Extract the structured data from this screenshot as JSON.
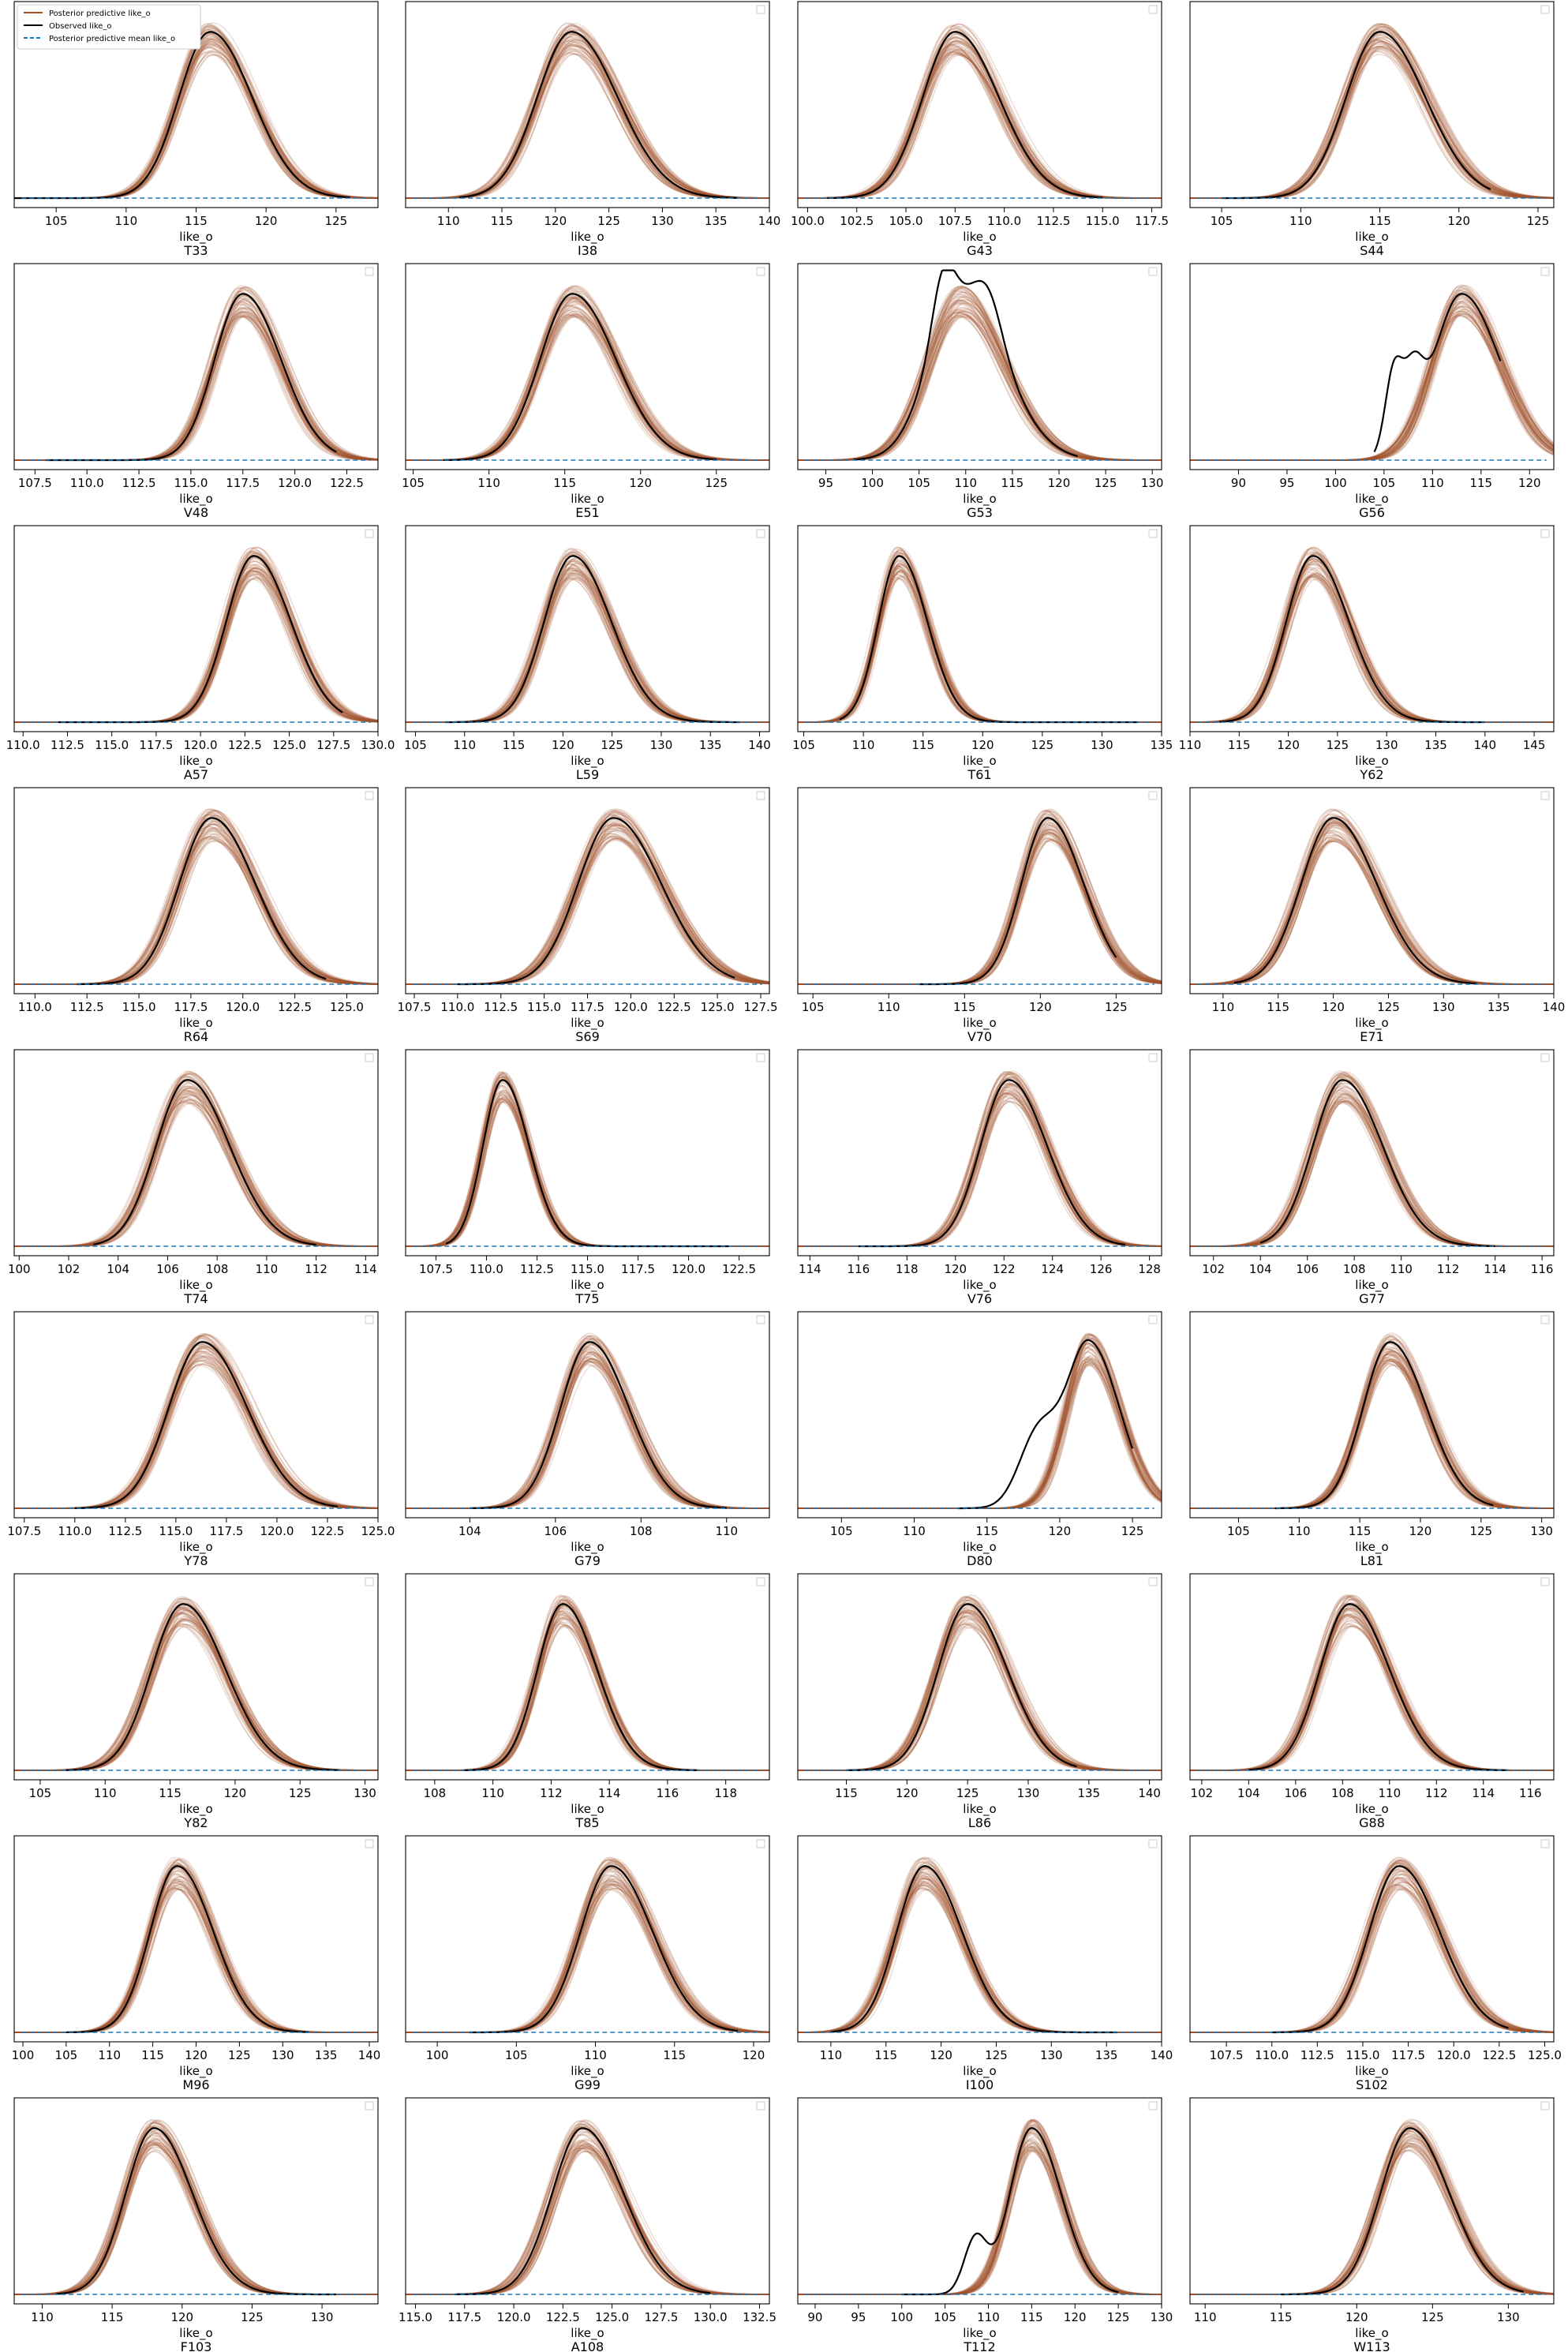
{
  "figure": {
    "legend": {
      "placement": "top-left of first panel",
      "entries": [
        {
          "label": "Posterior predictive like_o",
          "color": "#a0522d",
          "style": "solid"
        },
        {
          "label": "Observed like_o",
          "color": "#000000",
          "style": "solid"
        },
        {
          "label": "Posterior predictive mean like_o",
          "color": "#1f77b4",
          "style": "dashed"
        }
      ]
    },
    "colors": {
      "posterior": "#a0522d",
      "observed": "#000000",
      "mean": "#1f77b4",
      "axes": "#000000"
    }
  },
  "chart_data": [
    {
      "type": "line",
      "title": "T33",
      "xlabel": "like_o",
      "xlim": [
        102,
        128
      ],
      "xticks": [
        "105",
        "110",
        "115",
        "120",
        "125"
      ],
      "peak": 116.0,
      "sigma": 2.3,
      "obs": {
        "extent": [
          102,
          126
        ],
        "bumps": []
      },
      "legend": true,
      "series": [
        {
          "name": "Posterior predictive like_o",
          "values": "density curves"
        },
        {
          "name": "Observed like_o"
        },
        {
          "name": "Posterior predictive mean like_o"
        }
      ]
    },
    {
      "type": "line",
      "title": "I38",
      "xlabel": "like_o",
      "xlim": [
        106,
        140
      ],
      "xticks": [
        "110",
        "115",
        "120",
        "125",
        "130",
        "135",
        "140"
      ],
      "peak": 121.5,
      "sigma": 3.3,
      "obs": {
        "extent": [
          111,
          137
        ],
        "bumps": []
      }
    },
    {
      "type": "line",
      "title": "G43",
      "xlabel": "like_o",
      "xlim": [
        99.5,
        118
      ],
      "xticks": [
        "100.0",
        "102.5",
        "105.0",
        "107.5",
        "110.0",
        "112.5",
        "115.0",
        "117.5"
      ],
      "peak": 107.5,
      "sigma": 1.7,
      "obs": {
        "extent": [
          101,
          115
        ],
        "bumps": []
      }
    },
    {
      "type": "line",
      "title": "S44",
      "xlabel": "like_o",
      "xlim": [
        103,
        126
      ],
      "xticks": [
        "105",
        "110",
        "115",
        "120",
        "125"
      ],
      "peak": 115.0,
      "sigma": 2.2,
      "obs": {
        "extent": [
          105,
          122
        ],
        "bumps": []
      }
    },
    {
      "type": "line",
      "title": "V48",
      "xlabel": "like_o",
      "xlim": [
        106.5,
        124
      ],
      "xticks": [
        "107.5",
        "110.0",
        "112.5",
        "115.0",
        "117.5",
        "120.0",
        "122.5"
      ],
      "peak": 117.5,
      "sigma": 1.4,
      "obs": {
        "extent": [
          108,
          122
        ],
        "bumps": []
      }
    },
    {
      "type": "line",
      "title": "E51",
      "xlabel": "like_o",
      "xlim": [
        104.5,
        128.5
      ],
      "xticks": [
        "105",
        "110",
        "115",
        "120",
        "125"
      ],
      "peak": 115.5,
      "sigma": 2.2,
      "obs": {
        "extent": [
          107,
          125
        ],
        "bumps": []
      }
    },
    {
      "type": "line",
      "title": "G53",
      "xlabel": "like_o",
      "xlim": [
        92,
        131
      ],
      "xticks": [
        "95",
        "100",
        "105",
        "110",
        "115",
        "120",
        "125",
        "130"
      ],
      "peak": 109.5,
      "sigma": 3.5,
      "obs": {
        "extent": [
          98,
          122
        ],
        "bumps": [
          {
            "x": 107.5,
            "h": 0.28,
            "s": 1.1
          },
          {
            "x": 112.5,
            "h": 0.2,
            "s": 1.4
          }
        ]
      }
    },
    {
      "type": "line",
      "title": "G56",
      "xlabel": "like_o",
      "xlim": [
        85,
        122.5
      ],
      "xticks": [
        "90",
        "95",
        "100",
        "105",
        "110",
        "115",
        "120"
      ],
      "peak": 113.0,
      "sigma": 3.0,
      "obs": {
        "extent": [
          104,
          117
        ],
        "bumps": [
          {
            "x": 106,
            "h": 0.45,
            "s": 0.9
          },
          {
            "x": 108,
            "h": 0.35,
            "s": 1.0
          }
        ]
      }
    },
    {
      "type": "line",
      "title": "A57",
      "xlabel": "like_o",
      "xlim": [
        109.5,
        130
      ],
      "xticks": [
        "110.0",
        "112.5",
        "115.0",
        "117.5",
        "120.0",
        "122.5",
        "125.0",
        "127.5",
        "130.0"
      ],
      "peak": 123.0,
      "sigma": 1.6,
      "obs": {
        "extent": [
          112,
          128
        ],
        "bumps": []
      }
    },
    {
      "type": "line",
      "title": "L59",
      "xlabel": "like_o",
      "xlim": [
        104,
        141
      ],
      "xticks": [
        "105",
        "110",
        "115",
        "120",
        "125",
        "130",
        "135",
        "140"
      ],
      "peak": 121.0,
      "sigma": 3.0,
      "obs": {
        "extent": [
          108,
          138
        ],
        "bumps": []
      }
    },
    {
      "type": "line",
      "title": "T61",
      "xlabel": "like_o",
      "xlim": [
        104.5,
        135
      ],
      "xticks": [
        "105",
        "110",
        "115",
        "120",
        "125",
        "130",
        "135"
      ],
      "peak": 113.0,
      "sigma": 1.8,
      "obs": {
        "extent": [
          108,
          133
        ],
        "bumps": []
      }
    },
    {
      "type": "line",
      "title": "Y62",
      "xlabel": "like_o",
      "xlim": [
        110,
        147
      ],
      "xticks": [
        "110",
        "115",
        "120",
        "125",
        "130",
        "135",
        "140",
        "145"
      ],
      "peak": 122.5,
      "sigma": 2.8,
      "obs": {
        "extent": [
          113,
          140
        ],
        "bumps": []
      }
    },
    {
      "type": "line",
      "title": "R64",
      "xlabel": "like_o",
      "xlim": [
        109,
        126.5
      ],
      "xticks": [
        "110.0",
        "112.5",
        "115.0",
        "117.5",
        "120.0",
        "122.5",
        "125.0"
      ],
      "peak": 118.5,
      "sigma": 1.6,
      "obs": {
        "extent": [
          112,
          124
        ],
        "bumps": []
      }
    },
    {
      "type": "line",
      "title": "S69",
      "xlabel": "like_o",
      "xlim": [
        107,
        128
      ],
      "xticks": [
        "107.5",
        "110.0",
        "112.5",
        "115.0",
        "117.5",
        "120.0",
        "122.5",
        "125.0",
        "127.5"
      ],
      "peak": 119.0,
      "sigma": 2.1,
      "obs": {
        "extent": [
          110,
          126
        ],
        "bumps": []
      }
    },
    {
      "type": "line",
      "title": "V70",
      "xlabel": "like_o",
      "xlim": [
        104,
        128
      ],
      "xticks": [
        "105",
        "110",
        "115",
        "120",
        "125"
      ],
      "peak": 120.5,
      "sigma": 1.8,
      "obs": {
        "extent": [
          112,
          125
        ],
        "bumps": []
      }
    },
    {
      "type": "line",
      "title": "E71",
      "xlabel": "like_o",
      "xlim": [
        107,
        140
      ],
      "xticks": [
        "110",
        "115",
        "120",
        "125",
        "130",
        "135",
        "140"
      ],
      "peak": 120.0,
      "sigma": 3.0,
      "obs": {
        "extent": [
          111,
          133
        ],
        "bumps": []
      }
    },
    {
      "type": "line",
      "title": "T74",
      "xlabel": "like_o",
      "xlim": [
        99.8,
        114.5
      ],
      "xticks": [
        "100",
        "102",
        "104",
        "106",
        "108",
        "110",
        "112",
        "114"
      ],
      "peak": 106.8,
      "sigma": 1.3,
      "obs": {
        "extent": [
          103,
          112
        ],
        "bumps": []
      }
    },
    {
      "type": "line",
      "title": "T75",
      "xlabel": "like_o",
      "xlim": [
        106,
        124
      ],
      "xticks": [
        "107.5",
        "110.0",
        "112.5",
        "115.0",
        "117.5",
        "120.0",
        "122.5"
      ],
      "peak": 110.8,
      "sigma": 1.0,
      "obs": {
        "extent": [
          108,
          122
        ],
        "bumps": []
      }
    },
    {
      "type": "line",
      "title": "V76",
      "xlabel": "like_o",
      "xlim": [
        113.5,
        128.5
      ],
      "xticks": [
        "114",
        "116",
        "118",
        "120",
        "122",
        "124",
        "126",
        "128"
      ],
      "peak": 122.2,
      "sigma": 1.2,
      "obs": {
        "extent": [
          116,
          127
        ],
        "bumps": []
      }
    },
    {
      "type": "line",
      "title": "G77",
      "xlabel": "like_o",
      "xlim": [
        101,
        116.5
      ],
      "xticks": [
        "102",
        "104",
        "106",
        "108",
        "110",
        "112",
        "114",
        "116"
      ],
      "peak": 107.5,
      "sigma": 1.3,
      "obs": {
        "extent": [
          104,
          114
        ],
        "bumps": []
      }
    },
    {
      "type": "line",
      "title": "Y78",
      "xlabel": "like_o",
      "xlim": [
        107,
        125
      ],
      "xticks": [
        "107.5",
        "110.0",
        "112.5",
        "115.0",
        "117.5",
        "120.0",
        "122.5",
        "125.0"
      ],
      "peak": 116.3,
      "sigma": 1.7,
      "obs": {
        "extent": [
          110,
          123
        ],
        "bumps": []
      }
    },
    {
      "type": "line",
      "title": "G79",
      "xlabel": "like_o",
      "xlim": [
        102.5,
        111
      ],
      "xticks": [
        "104",
        "106",
        "108",
        "110"
      ],
      "peak": 106.8,
      "sigma": 0.7,
      "obs": {
        "extent": [
          104,
          110
        ],
        "bumps": []
      }
    },
    {
      "type": "line",
      "title": "D80",
      "xlabel": "like_o",
      "xlim": [
        102,
        127
      ],
      "xticks": [
        "105",
        "110",
        "115",
        "120",
        "125"
      ],
      "peak": 122.0,
      "sigma": 1.6,
      "obs": {
        "extent": [
          113,
          125
        ],
        "bumps": [
          {
            "x": 118.5,
            "h": 0.4,
            "s": 1.3
          }
        ]
      }
    },
    {
      "type": "line",
      "title": "L81",
      "xlabel": "like_o",
      "xlim": [
        101,
        131
      ],
      "xticks": [
        "105",
        "110",
        "115",
        "120",
        "125",
        "130"
      ],
      "peak": 117.5,
      "sigma": 2.3,
      "obs": {
        "extent": [
          108,
          126
        ],
        "bumps": []
      }
    },
    {
      "type": "line",
      "title": "Y82",
      "xlabel": "like_o",
      "xlim": [
        103,
        131
      ],
      "xticks": [
        "105",
        "110",
        "115",
        "120",
        "125",
        "130"
      ],
      "peak": 116.0,
      "sigma": 2.5,
      "obs": {
        "extent": [
          107,
          128
        ],
        "bumps": []
      }
    },
    {
      "type": "line",
      "title": "T85",
      "xlabel": "like_o",
      "xlim": [
        107,
        119.5
      ],
      "xticks": [
        "108",
        "110",
        "112",
        "114",
        "116",
        "118"
      ],
      "peak": 112.4,
      "sigma": 0.9,
      "obs": {
        "extent": [
          109,
          117
        ],
        "bumps": []
      }
    },
    {
      "type": "line",
      "title": "L86",
      "xlabel": "like_o",
      "xlim": [
        111,
        141
      ],
      "xticks": [
        "115",
        "120",
        "125",
        "130",
        "135",
        "140"
      ],
      "peak": 125.0,
      "sigma": 2.5,
      "obs": {
        "extent": [
          115,
          134
        ],
        "bumps": []
      }
    },
    {
      "type": "line",
      "title": "G88",
      "xlabel": "like_o",
      "xlim": [
        101.5,
        117
      ],
      "xticks": [
        "102",
        "104",
        "106",
        "108",
        "110",
        "112",
        "114",
        "116"
      ],
      "peak": 108.3,
      "sigma": 1.3,
      "obs": {
        "extent": [
          104,
          115
        ],
        "bumps": []
      }
    },
    {
      "type": "line",
      "title": "M96",
      "xlabel": "like_o",
      "xlim": [
        99,
        141
      ],
      "xticks": [
        "100",
        "105",
        "110",
        "115",
        "120",
        "125",
        "130",
        "135",
        "140"
      ],
      "peak": 117.8,
      "sigma": 3.2,
      "obs": {
        "extent": [
          105,
          133
        ],
        "bumps": []
      }
    },
    {
      "type": "line",
      "title": "G99",
      "xlabel": "like_o",
      "xlim": [
        98,
        121
      ],
      "xticks": [
        "100",
        "105",
        "110",
        "115",
        "120"
      ],
      "peak": 111.0,
      "sigma": 2.0,
      "obs": {
        "extent": [
          102,
          119
        ],
        "bumps": []
      }
    },
    {
      "type": "line",
      "title": "I100",
      "xlabel": "like_o",
      "xlim": [
        107,
        140
      ],
      "xticks": [
        "110",
        "115",
        "120",
        "125",
        "130",
        "135",
        "140"
      ],
      "peak": 118.5,
      "sigma": 2.6,
      "obs": {
        "extent": [
          110,
          136
        ],
        "bumps": []
      }
    },
    {
      "type": "line",
      "title": "S102",
      "xlabel": "like_o",
      "xlim": [
        105.5,
        125.5
      ],
      "xticks": [
        "107.5",
        "110.0",
        "112.5",
        "115.0",
        "117.5",
        "120.0",
        "122.5",
        "125.0"
      ],
      "peak": 117.0,
      "sigma": 1.7,
      "obs": {
        "extent": [
          110,
          123
        ],
        "bumps": []
      }
    },
    {
      "type": "line",
      "title": "F103",
      "xlabel": "like_o",
      "xlim": [
        108,
        134
      ],
      "xticks": [
        "110",
        "115",
        "120",
        "125",
        "130"
      ],
      "peak": 118.0,
      "sigma": 2.1,
      "obs": {
        "extent": [
          111,
          131
        ],
        "bumps": []
      }
    },
    {
      "type": "line",
      "title": "A108",
      "xlabel": "like_o",
      "xlim": [
        114.5,
        133
      ],
      "xticks": [
        "115.0",
        "117.5",
        "120.0",
        "122.5",
        "125.0",
        "127.5",
        "130.0",
        "132.5"
      ],
      "peak": 123.5,
      "sigma": 1.6,
      "obs": {
        "extent": [
          117,
          130
        ],
        "bumps": []
      }
    },
    {
      "type": "line",
      "title": "T112",
      "xlabel": "like_o",
      "xlim": [
        88,
        130
      ],
      "xticks": [
        "90",
        "95",
        "100",
        "105",
        "110",
        "115",
        "120",
        "125",
        "130"
      ],
      "peak": 115.0,
      "sigma": 2.6,
      "obs": {
        "extent": [
          100,
          125
        ],
        "bumps": [
          {
            "x": 108.5,
            "h": 0.3,
            "s": 1.3
          }
        ]
      }
    },
    {
      "type": "line",
      "title": "W113",
      "xlabel": "like_o",
      "xlim": [
        109,
        133
      ],
      "xticks": [
        "110",
        "115",
        "120",
        "125",
        "130"
      ],
      "peak": 123.5,
      "sigma": 2.0,
      "obs": {
        "extent": [
          115,
          131
        ],
        "bumps": []
      }
    }
  ]
}
